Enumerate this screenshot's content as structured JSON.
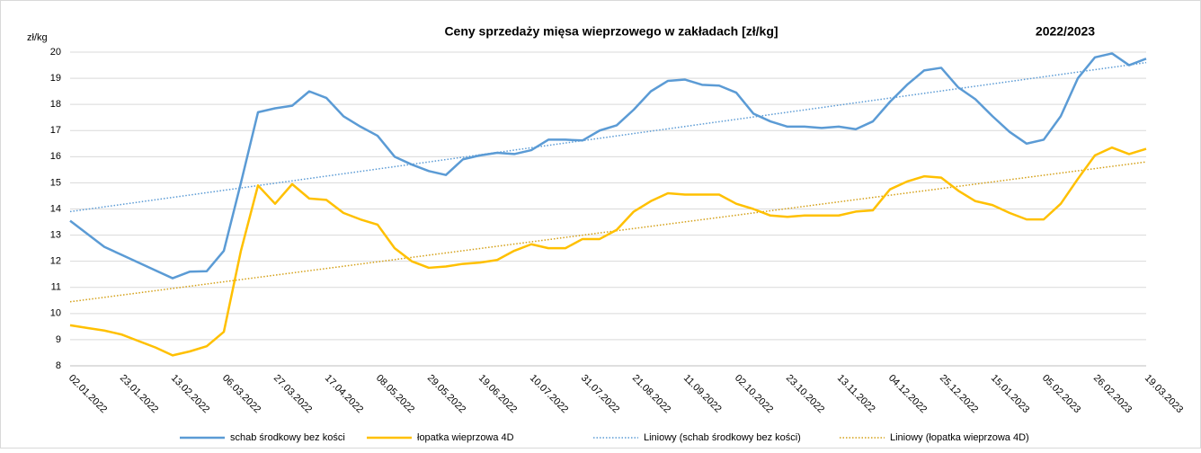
{
  "chart_data": {
    "type": "line",
    "title": "Ceny sprzedaży mięsa wieprzowego w zakładach [zł/kg]",
    "annotation": "2022/2023",
    "y_label": "zł/kg",
    "categories": [
      "02.01.2022",
      null,
      null,
      "23.01.2022",
      null,
      null,
      "13.02.2022",
      null,
      null,
      "06.03.2022",
      null,
      null,
      "27.03.2022",
      null,
      null,
      "17.04.2022",
      null,
      null,
      "08.05.2022",
      null,
      null,
      "29.05.2022",
      null,
      null,
      "19.06.2022",
      null,
      null,
      "10.07.2022",
      null,
      null,
      "31.07.2022",
      null,
      null,
      "21.08.2022",
      null,
      null,
      "11.09.2022",
      null,
      null,
      "02.10.2022",
      null,
      null,
      "23.10.2022",
      null,
      null,
      "13.11.2022",
      null,
      null,
      "04.12.2022",
      null,
      null,
      "25.12.2022",
      null,
      null,
      "15.01.2023",
      null,
      null,
      "05.02.2023",
      null,
      null,
      "26.02.2023",
      null,
      null,
      "19.03.2023"
    ],
    "series": [
      {
        "name": "schab środkowy bez kości",
        "color": "#5b9bd5",
        "values": [
          13.55,
          13.05,
          12.55,
          12.25,
          11.95,
          11.65,
          11.35,
          11.6,
          11.62,
          12.4,
          15.0,
          17.7,
          17.85,
          17.95,
          18.5,
          18.25,
          17.55,
          17.15,
          16.8,
          16.0,
          15.7,
          15.45,
          15.3,
          15.9,
          16.05,
          16.15,
          16.1,
          16.25,
          16.65,
          16.65,
          16.62,
          17.0,
          17.2,
          17.8,
          18.5,
          18.9,
          18.95,
          18.75,
          18.72,
          18.45,
          17.65,
          17.35,
          17.15,
          17.15,
          17.1,
          17.15,
          17.05,
          17.35,
          18.1,
          18.75,
          19.3,
          19.4,
          18.65,
          18.2,
          17.55,
          16.95,
          16.5,
          16.65,
          17.55,
          19.0,
          19.8,
          19.95,
          19.5,
          19.75
        ]
      },
      {
        "name": "łopatka wieprzowa 4D",
        "color": "#ffc000",
        "values": [
          9.55,
          9.45,
          9.35,
          9.2,
          8.95,
          8.7,
          8.4,
          8.55,
          8.75,
          9.3,
          12.4,
          14.9,
          14.2,
          14.95,
          14.4,
          14.35,
          13.85,
          13.6,
          13.4,
          12.5,
          12.0,
          11.75,
          11.8,
          11.9,
          11.95,
          12.05,
          12.4,
          12.65,
          12.5,
          12.5,
          12.85,
          12.85,
          13.2,
          13.9,
          14.3,
          14.6,
          14.55,
          14.55,
          14.55,
          14.2,
          14.0,
          13.75,
          13.7,
          13.75,
          13.75,
          13.75,
          13.9,
          13.95,
          14.75,
          15.05,
          15.25,
          15.2,
          14.7,
          14.3,
          14.15,
          13.85,
          13.6,
          13.6,
          14.2,
          15.15,
          16.05,
          16.35,
          16.1,
          16.3
        ]
      }
    ],
    "trendlines": [
      {
        "name": "Liniowy (schab środkowy bez kości)",
        "color": "#5b9bd5",
        "values": [
          13.9,
          19.6
        ]
      },
      {
        "name": "Liniowy (łopatka wieprzowa 4D)",
        "color": "#d4a017",
        "values": [
          10.45,
          15.8
        ]
      }
    ],
    "ylim": [
      8,
      20
    ],
    "yticks": [
      8,
      9,
      10,
      11,
      12,
      13,
      14,
      15,
      16,
      17,
      18,
      19,
      20
    ],
    "grid": true,
    "legend": "bottom"
  }
}
